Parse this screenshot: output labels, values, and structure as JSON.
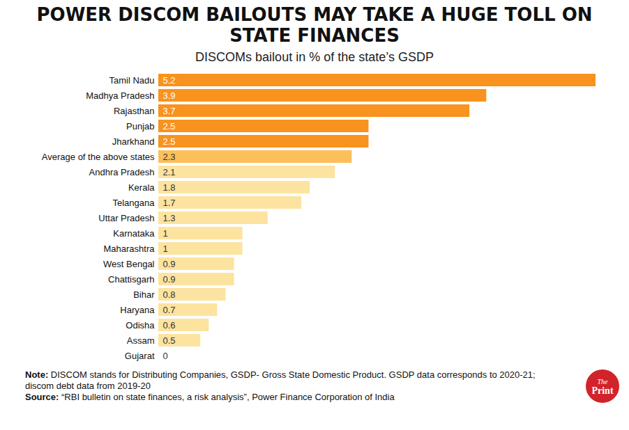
{
  "chart_data": {
    "type": "bar",
    "orientation": "horizontal",
    "title": "POWER DISCOM BAILOUTS MAY TAKE A HUGE TOLL ON STATE FINANCES",
    "subtitle": "DISCOMs bailout in % of the state’s GSDP",
    "categories": [
      "Tamil Nadu",
      "Madhya Pradesh",
      "Rajasthan",
      "Punjab",
      "Jharkhand",
      "Average of the above states",
      "Andhra Pradesh",
      "Kerala",
      "Telangana",
      "Uttar Pradesh",
      "Karnataka",
      "Maharashtra",
      "West Bengal",
      "Chattisgarh",
      "Bihar",
      "Haryana",
      "Odisha",
      "Assam",
      "Gujarat"
    ],
    "values": [
      5.2,
      3.9,
      3.7,
      2.5,
      2.5,
      2.3,
      2.1,
      1.8,
      1.7,
      1.3,
      1,
      1,
      0.9,
      0.9,
      0.8,
      0.7,
      0.6,
      0.5,
      0
    ],
    "colors": [
      "#f7931e",
      "#f7931e",
      "#f7931e",
      "#f7931e",
      "#f7931e",
      "#fcbf5a",
      "#fde3a0",
      "#fde3a0",
      "#fde3a0",
      "#fde3a0",
      "#fde3a0",
      "#fde3a0",
      "#fde3a0",
      "#fde3a0",
      "#fde3a0",
      "#fde3a0",
      "#fde3a0",
      "#fde3a0",
      "#fde3a0"
    ],
    "xlim": [
      0,
      5.2
    ],
    "data_labels": true,
    "tick_labels": "y",
    "grid": false,
    "note_label": "Note:",
    "note": "DISCOM stands for Distributing Companies, GSDP- Gross State Domestic Product. GSDP data corresponds to 2020-21; discom debt data from 2019-20",
    "source_label": "Source:",
    "source": "“RBI bulletin on state finances, a risk analysis”, Power Finance Corporation of India",
    "logo": [
      "The",
      "Print"
    ]
  }
}
